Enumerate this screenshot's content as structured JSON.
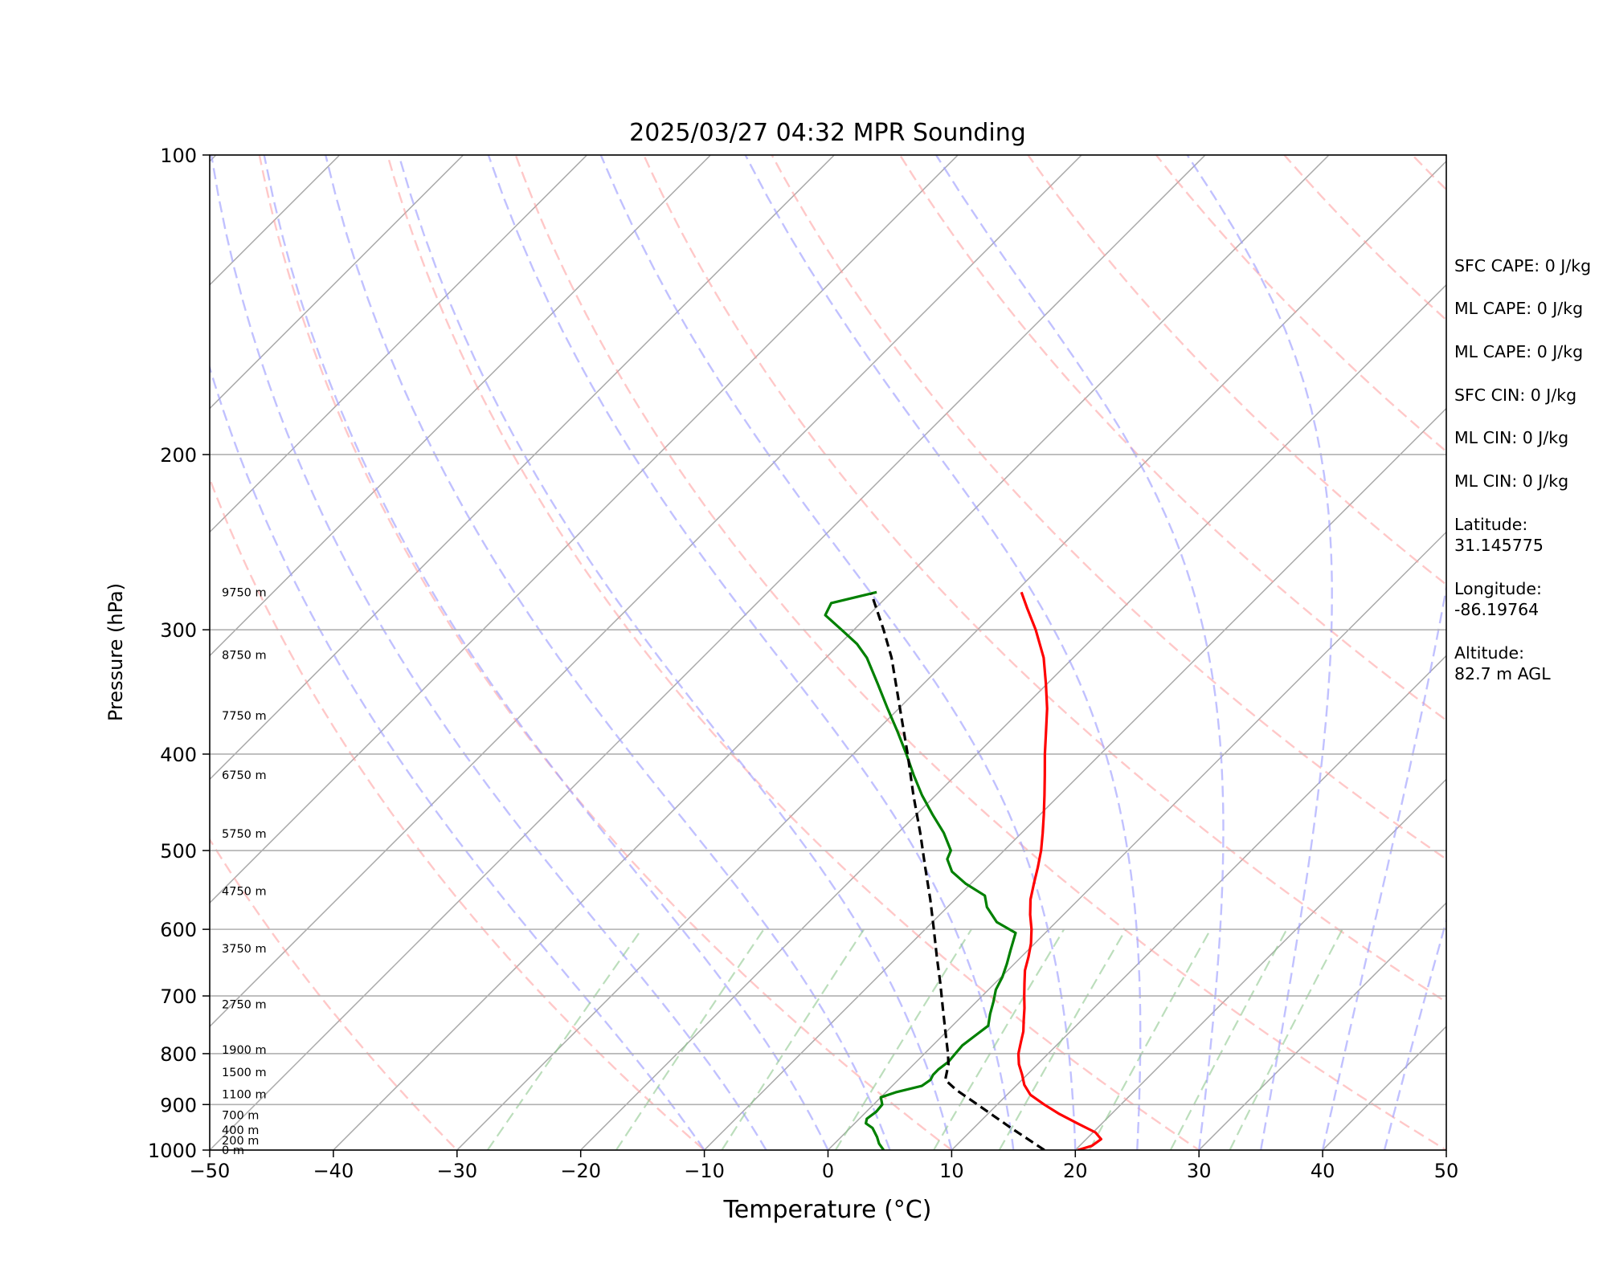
{
  "chart_data": {
    "type": "line",
    "subtype": "skew-T log-P diagram",
    "title": "2025/03/27 04:32 MPR Sounding",
    "xlabel": "Temperature (°C)",
    "ylabel": "Pressure (hPa)",
    "xlim": [
      -50,
      50
    ],
    "ylim": [
      1000,
      100
    ],
    "y_scale": "log",
    "x_ticks": [
      -50,
      -40,
      -30,
      -20,
      -10,
      0,
      10,
      20,
      30,
      40,
      50
    ],
    "x_tick_labels": [
      "−50",
      "−40",
      "−30",
      "−20",
      "−10",
      "0",
      "10",
      "20",
      "30",
      "40",
      "50"
    ],
    "y_ticks": [
      100,
      200,
      300,
      400,
      500,
      600,
      700,
      800,
      900,
      1000
    ],
    "y_tick_labels": [
      "100",
      "200",
      "300",
      "400",
      "500",
      "600",
      "700",
      "800",
      "900",
      "1000"
    ],
    "grid": true,
    "series": [
      {
        "key": "temperature",
        "color": "#ff0000",
        "style": "solid",
        "points": [
          [
            1000,
            20.2
          ],
          [
            990,
            21.0
          ],
          [
            975,
            21.2
          ],
          [
            960,
            20.2
          ],
          [
            940,
            18.0
          ],
          [
            920,
            15.8
          ],
          [
            900,
            13.8
          ],
          [
            880,
            11.9
          ],
          [
            860,
            10.6
          ],
          [
            840,
            9.6
          ],
          [
            820,
            8.5
          ],
          [
            800,
            7.6
          ],
          [
            780,
            6.9
          ],
          [
            760,
            6.2
          ],
          [
            740,
            5.3
          ],
          [
            720,
            4.4
          ],
          [
            700,
            3.4
          ],
          [
            680,
            2.4
          ],
          [
            660,
            1.4
          ],
          [
            640,
            0.6
          ],
          [
            620,
            -0.3
          ],
          [
            600,
            -1.4
          ],
          [
            580,
            -2.7
          ],
          [
            560,
            -3.9
          ],
          [
            540,
            -4.9
          ],
          [
            520,
            -5.9
          ],
          [
            500,
            -7.0
          ],
          [
            480,
            -8.3
          ],
          [
            460,
            -9.7
          ],
          [
            440,
            -11.2
          ],
          [
            420,
            -12.8
          ],
          [
            400,
            -14.5
          ],
          [
            380,
            -16.2
          ],
          [
            360,
            -18.0
          ],
          [
            340,
            -20.1
          ],
          [
            320,
            -22.4
          ],
          [
            300,
            -25.3
          ],
          [
            285,
            -27.8
          ],
          [
            275,
            -29.5
          ]
        ]
      },
      {
        "key": "dewpoint",
        "color": "#008000",
        "style": "solid",
        "points": [
          [
            1000,
            4.5
          ],
          [
            985,
            3.6
          ],
          [
            970,
            2.9
          ],
          [
            950,
            1.8
          ],
          [
            940,
            0.9
          ],
          [
            930,
            0.6
          ],
          [
            915,
            0.8
          ],
          [
            900,
            0.7
          ],
          [
            885,
            0.0
          ],
          [
            875,
            0.8
          ],
          [
            862,
            2.4
          ],
          [
            850,
            2.6
          ],
          [
            840,
            2.4
          ],
          [
            830,
            2.4
          ],
          [
            815,
            2.6
          ],
          [
            800,
            2.5
          ],
          [
            785,
            2.4
          ],
          [
            770,
            2.6
          ],
          [
            750,
            2.9
          ],
          [
            730,
            2.1
          ],
          [
            710,
            1.4
          ],
          [
            690,
            0.6
          ],
          [
            670,
            0.1
          ],
          [
            650,
            -0.6
          ],
          [
            630,
            -1.4
          ],
          [
            605,
            -2.4
          ],
          [
            590,
            -4.8
          ],
          [
            570,
            -6.8
          ],
          [
            555,
            -7.9
          ],
          [
            540,
            -10.4
          ],
          [
            525,
            -12.5
          ],
          [
            510,
            -13.9
          ],
          [
            500,
            -14.3
          ],
          [
            480,
            -16.3
          ],
          [
            460,
            -18.7
          ],
          [
            440,
            -21.1
          ],
          [
            420,
            -23.4
          ],
          [
            400,
            -25.7
          ],
          [
            380,
            -28.2
          ],
          [
            360,
            -30.9
          ],
          [
            340,
            -33.7
          ],
          [
            320,
            -36.7
          ],
          [
            310,
            -38.6
          ],
          [
            300,
            -41.0
          ],
          [
            290,
            -43.5
          ],
          [
            282,
            -44.0
          ],
          [
            275,
            -41.2
          ]
        ]
      },
      {
        "key": "parcel_profile",
        "color": "#000000",
        "style": "dashed",
        "points": [
          [
            1000,
            17.5
          ],
          [
            950,
            13.0
          ],
          [
            900,
            8.4
          ],
          [
            870,
            5.5
          ],
          [
            850,
            3.8
          ],
          [
            820,
            2.8
          ],
          [
            800,
            1.9
          ],
          [
            760,
            -0.1
          ],
          [
            720,
            -2.2
          ],
          [
            680,
            -4.4
          ],
          [
            640,
            -6.8
          ],
          [
            600,
            -9.3
          ],
          [
            560,
            -12.0
          ],
          [
            520,
            -15.0
          ],
          [
            480,
            -18.2
          ],
          [
            440,
            -21.8
          ],
          [
            400,
            -25.6
          ],
          [
            360,
            -29.9
          ],
          [
            320,
            -34.7
          ],
          [
            300,
            -37.6
          ],
          [
            276,
            -41.5
          ]
        ]
      }
    ],
    "dry_adiabats": [
      -30,
      -10,
      10,
      30,
      50,
      70,
      90,
      110,
      130,
      150,
      170,
      190,
      210
    ],
    "moist_adiabats": [
      -10,
      -5,
      0,
      5,
      10,
      15,
      20,
      25,
      30,
      35,
      40,
      45
    ],
    "mixing_lines": [
      0.4,
      1,
      2,
      4,
      7,
      10,
      16,
      24,
      32
    ],
    "height_labels": [
      {
        "pressure": 1000,
        "text": "0 m"
      },
      {
        "pressure": 978,
        "text": "200 m"
      },
      {
        "pressure": 955,
        "text": "400 m"
      },
      {
        "pressure": 922,
        "text": "700 m"
      },
      {
        "pressure": 879,
        "text": "1100 m"
      },
      {
        "pressure": 835,
        "text": "1500 m"
      },
      {
        "pressure": 793,
        "text": "1900 m"
      },
      {
        "pressure": 714,
        "text": "2750 m"
      },
      {
        "pressure": 627,
        "text": "3750 m"
      },
      {
        "pressure": 549,
        "text": "4750 m"
      },
      {
        "pressure": 481,
        "text": "5750 m"
      },
      {
        "pressure": 420,
        "text": "6750 m"
      },
      {
        "pressure": 366,
        "text": "7750 m"
      },
      {
        "pressure": 318,
        "text": "8750 m"
      },
      {
        "pressure": 275,
        "text": "9750 m"
      }
    ]
  },
  "side_info": [
    "SFC CAPE: 0 J/kg",
    "ML CAPE: 0 J/kg",
    "ML CAPE: 0 J/kg",
    "SFC CIN: 0 J/kg",
    "ML CIN: 0 J/kg",
    "ML CIN: 0 J/kg",
    "Latitude:",
    "31.145775",
    "Longitude:",
    "-86.19764",
    "Altitude:",
    "82.7 m AGL"
  ]
}
